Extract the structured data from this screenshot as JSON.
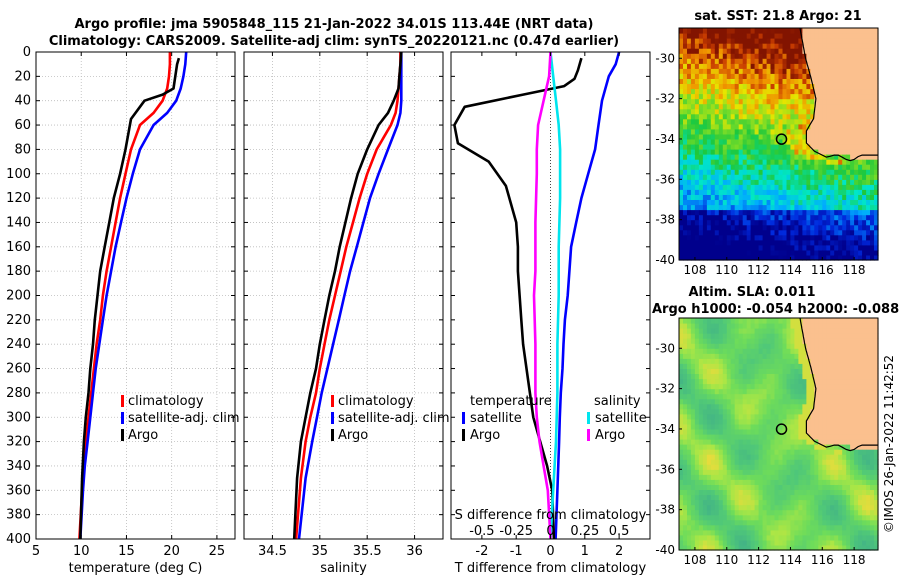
{
  "titles": {
    "line1": "Argo profile: jma 5905848_115 21-Jan-2022 34.01S 113.44E (NRT data)",
    "line2": "Climatology: CARS2009. Satellite-adj clim: synTS_20220121.nc (0.47d earlier)",
    "sst": "sat. SST: 21.8 Argo: 21",
    "sla1": "Altim. SLA: 0.011",
    "sla2": "Argo h1000: -0.054 h2000: -0.088",
    "stamp": "©IMOS 26-Jan-2022 11:42:52"
  },
  "colors": {
    "climatology": "#ff0000",
    "satellite": "#0000ff",
    "argo": "#000000",
    "salinity_sat": "#00e5ee",
    "salinity_argo": "#ff00ff",
    "land": "#fbc08e"
  },
  "legend": {
    "climatology": "climatology",
    "satellite_adj": "satellite-adj. clim",
    "argo": "Argo",
    "temperature": "temperature",
    "salinity": "salinity",
    "satellite": "satellite",
    "argo2": "Argo"
  },
  "chart_data": [
    {
      "type": "line",
      "id": "temperature",
      "xlabel": "temperature (deg C)",
      "ylabel": "",
      "xlim": [
        5,
        27
      ],
      "ylim": [
        400,
        0
      ],
      "xticks": [
        5,
        10,
        15,
        20,
        25
      ],
      "xticklabels": [
        "5",
        "10",
        "15",
        "20",
        "25"
      ],
      "yticks": [
        0,
        20,
        40,
        60,
        80,
        100,
        120,
        140,
        160,
        180,
        200,
        220,
        240,
        260,
        280,
        300,
        320,
        340,
        360,
        380,
        400
      ],
      "grid": true,
      "series": [
        {
          "name": "climatology",
          "color": "#ff0000",
          "x": [
            19.8,
            19.8,
            19.7,
            19.5,
            19.0,
            18.0,
            16.5,
            15.5,
            14.9,
            14.3,
            13.8,
            13.3,
            12.8,
            12.4,
            12.1,
            11.7,
            11.4,
            11.1,
            10.8,
            10.5,
            10.3,
            10.1,
            9.8
          ],
          "y": [
            0,
            10,
            20,
            30,
            40,
            50,
            60,
            80,
            100,
            120,
            140,
            160,
            180,
            200,
            220,
            240,
            260,
            280,
            300,
            320,
            340,
            360,
            400
          ]
        },
        {
          "name": "satellite-adj. clim",
          "color": "#0000ff",
          "x": [
            21.6,
            21.5,
            21.3,
            21.0,
            20.5,
            19.5,
            18.0,
            16.5,
            15.7,
            15.0,
            14.4,
            13.8,
            13.3,
            12.8,
            12.4,
            12.0,
            11.6,
            11.3,
            11.0,
            10.7,
            10.4,
            10.2,
            9.9
          ],
          "y": [
            0,
            10,
            20,
            30,
            40,
            50,
            60,
            80,
            100,
            120,
            140,
            160,
            180,
            200,
            220,
            240,
            260,
            280,
            300,
            320,
            340,
            360,
            400
          ]
        },
        {
          "name": "Argo",
          "color": "#000000",
          "x": [
            20.8,
            20.6,
            20.4,
            20.2,
            19.0,
            17.0,
            15.5,
            14.9,
            14.3,
            13.6,
            13.1,
            12.6,
            12.1,
            11.8,
            11.5,
            11.3,
            11.0,
            10.8,
            10.5,
            10.3,
            10.1,
            9.9
          ],
          "y": [
            5,
            10,
            20,
            30,
            35,
            40,
            55,
            80,
            100,
            120,
            140,
            160,
            180,
            200,
            220,
            240,
            260,
            280,
            300,
            320,
            350,
            400
          ]
        }
      ]
    },
    {
      "type": "line",
      "id": "salinity",
      "xlabel": "salinity",
      "ylabel": "",
      "xlim": [
        34.2,
        36.3
      ],
      "ylim": [
        400,
        0
      ],
      "xticks": [
        34.5,
        35,
        35.5,
        36
      ],
      "xticklabels": [
        "34.5",
        "35",
        "35.5",
        "36"
      ],
      "grid": true,
      "series": [
        {
          "name": "climatology",
          "color": "#ff0000",
          "x": [
            35.85,
            35.85,
            35.84,
            35.83,
            35.82,
            35.8,
            35.75,
            35.6,
            35.5,
            35.42,
            35.35,
            35.28,
            35.22,
            35.16,
            35.1,
            35.05,
            35.0,
            34.96,
            34.9,
            34.85,
            34.8,
            34.75
          ],
          "y": [
            0,
            10,
            20,
            30,
            40,
            50,
            60,
            80,
            100,
            120,
            140,
            160,
            180,
            200,
            220,
            240,
            260,
            280,
            300,
            320,
            350,
            400
          ]
        },
        {
          "name": "satellite-adj. clim",
          "color": "#0000ff",
          "x": [
            35.86,
            35.86,
            35.86,
            35.86,
            35.86,
            35.85,
            35.82,
            35.72,
            35.62,
            35.53,
            35.46,
            35.39,
            35.32,
            35.26,
            35.2,
            35.14,
            35.08,
            35.02,
            34.97,
            34.92,
            34.85,
            34.78
          ],
          "y": [
            0,
            10,
            20,
            30,
            40,
            50,
            60,
            80,
            100,
            120,
            140,
            160,
            180,
            200,
            220,
            240,
            260,
            280,
            300,
            320,
            350,
            400
          ]
        },
        {
          "name": "Argo",
          "color": "#000000",
          "x": [
            35.86,
            35.85,
            35.84,
            35.83,
            35.78,
            35.72,
            35.62,
            35.5,
            35.4,
            35.33,
            35.27,
            35.21,
            35.16,
            35.1,
            35.05,
            35.0,
            34.96,
            34.9,
            34.85,
            34.8,
            34.76,
            34.73
          ],
          "y": [
            0,
            10,
            20,
            30,
            40,
            50,
            60,
            80,
            100,
            120,
            140,
            160,
            180,
            200,
            220,
            240,
            260,
            280,
            300,
            320,
            350,
            400
          ]
        }
      ]
    },
    {
      "type": "line",
      "id": "differences",
      "xlabel": "T difference from climatology",
      "x2label": "S difference from climatology",
      "xlim": [
        -2.9,
        2.9
      ],
      "ylim": [
        400,
        0
      ],
      "xticks": [
        -2,
        -1,
        0,
        1,
        2
      ],
      "xticklabels": [
        "-2",
        "-1",
        "0",
        "1",
        "2"
      ],
      "x2ticks": [
        -0.5,
        -0.25,
        0,
        0.25,
        0.5
      ],
      "x2ticklabels": [
        "-0.5",
        "-0.25",
        "0",
        "0.25",
        "0.5"
      ],
      "x2scale": 4,
      "series": [
        {
          "name": "temperature satellite",
          "color": "#0000ff",
          "x": [
            2.0,
            1.9,
            1.7,
            1.5,
            1.4,
            1.3,
            1.1,
            0.9,
            0.75,
            0.6,
            0.55,
            0.5,
            0.42,
            0.38,
            0.35,
            0.3,
            0.27,
            0.25,
            0.2,
            0.15
          ],
          "y": [
            0,
            10,
            20,
            40,
            60,
            80,
            100,
            120,
            140,
            160,
            180,
            200,
            220,
            240,
            260,
            280,
            300,
            320,
            360,
            400
          ]
        },
        {
          "name": "temperature Argo",
          "color": "#000000",
          "x": [
            0.9,
            0.8,
            0.7,
            0.4,
            -0.8,
            -2.5,
            -2.8,
            -2.7,
            -1.8,
            -1.3,
            -1.0,
            -0.95,
            -0.95,
            -0.9,
            -0.85,
            -0.8,
            -0.7,
            -0.6,
            -0.5,
            -0.3,
            -0.1,
            0.05,
            0.1
          ],
          "y": [
            5,
            15,
            22,
            28,
            35,
            45,
            60,
            75,
            90,
            110,
            140,
            160,
            180,
            200,
            220,
            240,
            260,
            280,
            300,
            320,
            340,
            360,
            400
          ]
        },
        {
          "name": "salinity satellite",
          "color": "#00e5ee",
          "x": [
            0.0,
            0.02,
            0.04,
            0.06,
            0.07,
            0.07,
            0.06,
            0.06,
            0.05,
            0.05,
            0.04,
            0.03,
            0.02,
            0.0
          ],
          "y": [
            0,
            20,
            40,
            60,
            80,
            120,
            160,
            200,
            240,
            280,
            320,
            340,
            360,
            400
          ]
        },
        {
          "name": "salinity Argo",
          "color": "#ff00ff",
          "x": [
            0.0,
            -0.01,
            -0.05,
            -0.09,
            -0.1,
            -0.1,
            -0.11,
            -0.11,
            -0.12,
            -0.11,
            -0.11,
            -0.1,
            -0.08,
            -0.05,
            -0.02,
            0.0
          ],
          "y": [
            0,
            20,
            40,
            60,
            80,
            100,
            140,
            180,
            200,
            240,
            280,
            300,
            320,
            340,
            360,
            400
          ]
        }
      ]
    },
    {
      "type": "heatmap",
      "id": "sst_map",
      "title": "sat. SST: 21.8 Argo: 21",
      "xlim": [
        107,
        119.5
      ],
      "ylim": [
        -40,
        -28.5
      ],
      "xticks": [
        108,
        110,
        112,
        114,
        116,
        118
      ],
      "xticklabels": [
        "108",
        "110",
        "112",
        "114",
        "116",
        "118"
      ],
      "yticks": [
        -30,
        -32,
        -34,
        -36,
        -38,
        -40
      ],
      "yticklabels": [
        "-30",
        "-32",
        "-34",
        "-36",
        "-38",
        "-40"
      ],
      "argo_position": {
        "lon": 113.44,
        "lat": -34.01
      }
    },
    {
      "type": "heatmap",
      "id": "sla_map",
      "title": "Altim. SLA: 0.011",
      "xlim": [
        107,
        119.5
      ],
      "ylim": [
        -40,
        -28.5
      ],
      "xticks": [
        108,
        110,
        112,
        114,
        116,
        118
      ],
      "xticklabels": [
        "108",
        "110",
        "112",
        "114",
        "116",
        "118"
      ],
      "yticks": [
        -30,
        -32,
        -34,
        -36,
        -38,
        -40
      ],
      "yticklabels": [
        "-30",
        "-32",
        "-34",
        "-36",
        "-38",
        "-40"
      ],
      "argo_position": {
        "lon": 113.44,
        "lat": -34.01
      }
    }
  ]
}
